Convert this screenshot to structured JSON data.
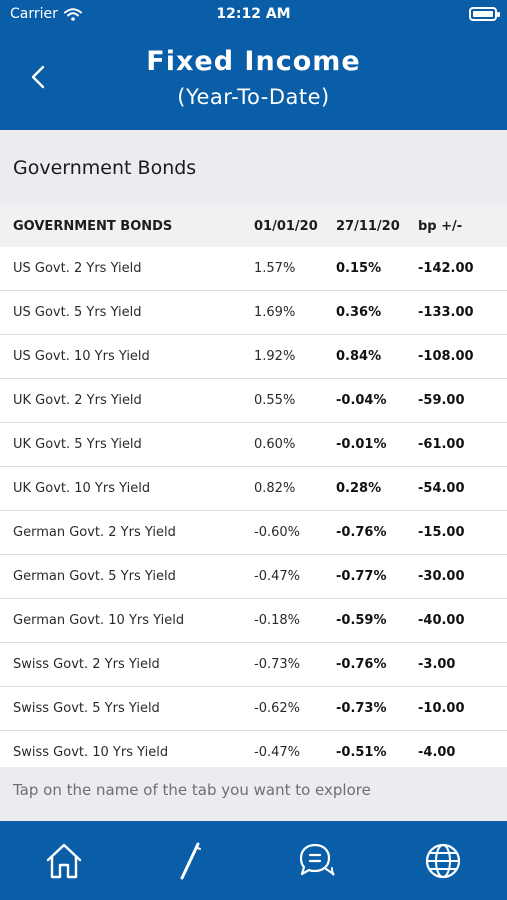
{
  "status_bar": {
    "carrier": "Carrier",
    "time": "12:12 AM"
  },
  "header": {
    "title": "Fixed Income",
    "subtitle": "(Year-To-Date)"
  },
  "section": {
    "title": "Government Bonds"
  },
  "table": {
    "columns": [
      "GOVERNMENT BONDS",
      "01/01/20",
      "27/11/20",
      "bp +/-"
    ],
    "rows": [
      [
        "US Govt. 2 Yrs Yield",
        "1.57%",
        "0.15%",
        "-142.00"
      ],
      [
        "US Govt. 5 Yrs Yield",
        "1.69%",
        "0.36%",
        "-133.00"
      ],
      [
        "US Govt. 10 Yrs Yield",
        "1.92%",
        "0.84%",
        "-108.00"
      ],
      [
        "UK Govt. 2 Yrs Yield",
        "0.55%",
        "-0.04%",
        "-59.00"
      ],
      [
        "UK Govt. 5 Yrs Yield",
        "0.60%",
        "-0.01%",
        "-61.00"
      ],
      [
        "UK Govt. 10 Yrs Yield",
        "0.82%",
        "0.28%",
        "-54.00"
      ],
      [
        "German Govt. 2 Yrs Yield",
        "-0.60%",
        "-0.76%",
        "-15.00"
      ],
      [
        "German Govt. 5 Yrs Yield",
        "-0.47%",
        "-0.77%",
        "-30.00"
      ],
      [
        "German Govt. 10 Yrs Yield",
        "-0.18%",
        "-0.59%",
        "-40.00"
      ],
      [
        "Swiss Govt. 2 Yrs Yield",
        "-0.73%",
        "-0.76%",
        "-3.00"
      ],
      [
        "Swiss Govt. 5 Yrs Yield",
        "-0.62%",
        "-0.73%",
        "-10.00"
      ],
      [
        "Swiss Govt. 10 Yrs Yield",
        "-0.47%",
        "-0.51%",
        "-4.00"
      ]
    ]
  },
  "hint": {
    "text": "Tap on the name of the tab you want to explore"
  },
  "tabbar": {
    "icons": [
      "home-icon",
      "pen-icon",
      "chat-icon",
      "globe-icon"
    ]
  },
  "colors": {
    "brand": "#0a5ea8",
    "section_bg": "#ececf0"
  }
}
